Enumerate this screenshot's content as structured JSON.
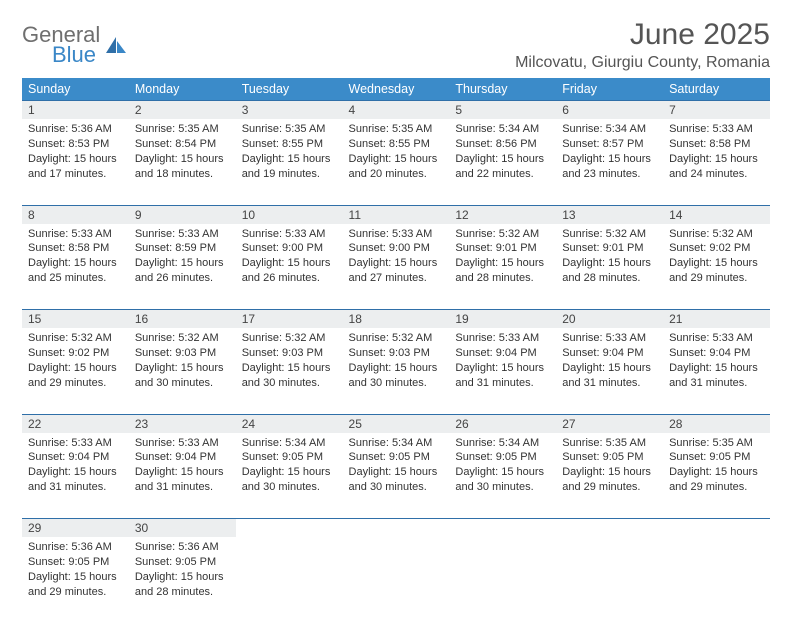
{
  "brand": {
    "line1": "General",
    "line2": "Blue"
  },
  "title": "June 2025",
  "location": "Milcovatu, Giurgiu County, Romania",
  "colors": {
    "header_bg": "#3b8bc9",
    "header_text": "#ffffff",
    "daynum_bg": "#eceeef",
    "rule": "#2f6fa8",
    "body_text": "#333333",
    "title_text": "#555555",
    "logo_gray": "#6f6f6f",
    "logo_blue": "#3a87c7"
  },
  "day_headers": [
    "Sunday",
    "Monday",
    "Tuesday",
    "Wednesday",
    "Thursday",
    "Friday",
    "Saturday"
  ],
  "weeks": [
    [
      {
        "n": "1",
        "sr": "5:36 AM",
        "ss": "8:53 PM",
        "dl": "15 hours and 17 minutes."
      },
      {
        "n": "2",
        "sr": "5:35 AM",
        "ss": "8:54 PM",
        "dl": "15 hours and 18 minutes."
      },
      {
        "n": "3",
        "sr": "5:35 AM",
        "ss": "8:55 PM",
        "dl": "15 hours and 19 minutes."
      },
      {
        "n": "4",
        "sr": "5:35 AM",
        "ss": "8:55 PM",
        "dl": "15 hours and 20 minutes."
      },
      {
        "n": "5",
        "sr": "5:34 AM",
        "ss": "8:56 PM",
        "dl": "15 hours and 22 minutes."
      },
      {
        "n": "6",
        "sr": "5:34 AM",
        "ss": "8:57 PM",
        "dl": "15 hours and 23 minutes."
      },
      {
        "n": "7",
        "sr": "5:33 AM",
        "ss": "8:58 PM",
        "dl": "15 hours and 24 minutes."
      }
    ],
    [
      {
        "n": "8",
        "sr": "5:33 AM",
        "ss": "8:58 PM",
        "dl": "15 hours and 25 minutes."
      },
      {
        "n": "9",
        "sr": "5:33 AM",
        "ss": "8:59 PM",
        "dl": "15 hours and 26 minutes."
      },
      {
        "n": "10",
        "sr": "5:33 AM",
        "ss": "9:00 PM",
        "dl": "15 hours and 26 minutes."
      },
      {
        "n": "11",
        "sr": "5:33 AM",
        "ss": "9:00 PM",
        "dl": "15 hours and 27 minutes."
      },
      {
        "n": "12",
        "sr": "5:32 AM",
        "ss": "9:01 PM",
        "dl": "15 hours and 28 minutes."
      },
      {
        "n": "13",
        "sr": "5:32 AM",
        "ss": "9:01 PM",
        "dl": "15 hours and 28 minutes."
      },
      {
        "n": "14",
        "sr": "5:32 AM",
        "ss": "9:02 PM",
        "dl": "15 hours and 29 minutes."
      }
    ],
    [
      {
        "n": "15",
        "sr": "5:32 AM",
        "ss": "9:02 PM",
        "dl": "15 hours and 29 minutes."
      },
      {
        "n": "16",
        "sr": "5:32 AM",
        "ss": "9:03 PM",
        "dl": "15 hours and 30 minutes."
      },
      {
        "n": "17",
        "sr": "5:32 AM",
        "ss": "9:03 PM",
        "dl": "15 hours and 30 minutes."
      },
      {
        "n": "18",
        "sr": "5:32 AM",
        "ss": "9:03 PM",
        "dl": "15 hours and 30 minutes."
      },
      {
        "n": "19",
        "sr": "5:33 AM",
        "ss": "9:04 PM",
        "dl": "15 hours and 31 minutes."
      },
      {
        "n": "20",
        "sr": "5:33 AM",
        "ss": "9:04 PM",
        "dl": "15 hours and 31 minutes."
      },
      {
        "n": "21",
        "sr": "5:33 AM",
        "ss": "9:04 PM",
        "dl": "15 hours and 31 minutes."
      }
    ],
    [
      {
        "n": "22",
        "sr": "5:33 AM",
        "ss": "9:04 PM",
        "dl": "15 hours and 31 minutes."
      },
      {
        "n": "23",
        "sr": "5:33 AM",
        "ss": "9:04 PM",
        "dl": "15 hours and 31 minutes."
      },
      {
        "n": "24",
        "sr": "5:34 AM",
        "ss": "9:05 PM",
        "dl": "15 hours and 30 minutes."
      },
      {
        "n": "25",
        "sr": "5:34 AM",
        "ss": "9:05 PM",
        "dl": "15 hours and 30 minutes."
      },
      {
        "n": "26",
        "sr": "5:34 AM",
        "ss": "9:05 PM",
        "dl": "15 hours and 30 minutes."
      },
      {
        "n": "27",
        "sr": "5:35 AM",
        "ss": "9:05 PM",
        "dl": "15 hours and 29 minutes."
      },
      {
        "n": "28",
        "sr": "5:35 AM",
        "ss": "9:05 PM",
        "dl": "15 hours and 29 minutes."
      }
    ],
    [
      {
        "n": "29",
        "sr": "5:36 AM",
        "ss": "9:05 PM",
        "dl": "15 hours and 29 minutes."
      },
      {
        "n": "30",
        "sr": "5:36 AM",
        "ss": "9:05 PM",
        "dl": "15 hours and 28 minutes."
      },
      null,
      null,
      null,
      null,
      null
    ]
  ],
  "labels": {
    "sunrise": "Sunrise: ",
    "sunset": "Sunset: ",
    "daylight": "Daylight: "
  }
}
